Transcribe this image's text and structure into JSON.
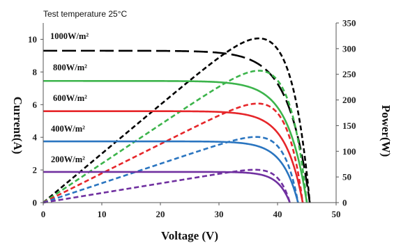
{
  "chart_data": {
    "type": "line",
    "annotation": "Test  temperature 25°C",
    "xlabel": "Voltage (V)",
    "ylabel_left": "Current(A)",
    "ylabel_right": "Power(W)",
    "xlim": [
      0,
      50
    ],
    "ylim_left": [
      0,
      11
    ],
    "ylim_right": [
      0,
      350
    ],
    "xticks": [
      0,
      10,
      20,
      30,
      40,
      50
    ],
    "yticks_left": [
      0,
      2,
      4,
      6,
      8,
      10
    ],
    "yticks_right": [
      0,
      50,
      100,
      150,
      200,
      250,
      300,
      350
    ],
    "grid": false,
    "curves": [
      {
        "label": "1000W/m²",
        "color": "#000000",
        "isc": 9.3,
        "voc": 45.5,
        "vmp": 36.8,
        "pmax": 320
      },
      {
        "label": "800W/m²",
        "color": "#3cb44b",
        "isc": 7.45,
        "voc": 45.0,
        "vmp": 36.8,
        "pmax": 257
      },
      {
        "label": "600W/m²",
        "color": "#e6262a",
        "isc": 5.6,
        "voc": 44.3,
        "vmp": 36.6,
        "pmax": 193
      },
      {
        "label": "400W/m²",
        "color": "#2a75c0",
        "isc": 3.75,
        "voc": 43.5,
        "vmp": 36.3,
        "pmax": 128
      },
      {
        "label": "200W/m²",
        "color": "#7030a0",
        "isc": 1.88,
        "voc": 42.1,
        "vmp": 36.1,
        "pmax": 64
      }
    ]
  }
}
